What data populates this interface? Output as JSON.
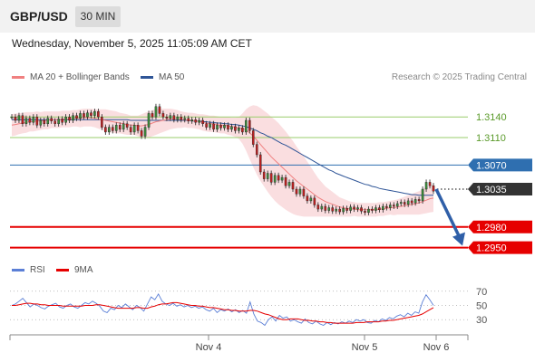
{
  "header": {
    "pair": "GBP/USD",
    "timeframe": "30 MIN"
  },
  "datetime": "Wednesday, November 5, 2025 11:05:09 AM CET",
  "legend_main": [
    {
      "label": "MA 20 + Bollinger Bands",
      "color": "#f08080"
    },
    {
      "label": "MA 50",
      "color": "#2f5597"
    }
  ],
  "legend_rsi": [
    {
      "label": "RSI",
      "color": "#5b7fd6"
    },
    {
      "label": "9MA",
      "color": "#e60000"
    }
  ],
  "credit": "Research © 2025 Trading Central",
  "colors": {
    "green": "#9acd6b",
    "blue": "#2f6fb0",
    "red": "#e60000",
    "dark": "#333333",
    "bands": "#fadadd",
    "candle_up": "#3c8c3c",
    "candle_down": "#c02020"
  },
  "chart_data": {
    "type": "candlestick",
    "x_ticks": [
      "Nov 4",
      "Nov 5",
      "Nov 6"
    ],
    "y_range": [
      1.2935,
      1.3185
    ],
    "levels": [
      {
        "value": 1.314,
        "label": "1.3140",
        "style": "green"
      },
      {
        "value": 1.311,
        "label": "1.3110",
        "style": "green"
      },
      {
        "value": 1.307,
        "label": "1.3070",
        "style": "blue"
      },
      {
        "value": 1.3035,
        "label": "1.3035",
        "style": "dark-current"
      },
      {
        "value": 1.298,
        "label": "1.2980",
        "style": "red"
      },
      {
        "value": 1.295,
        "label": "1.2950",
        "style": "red"
      }
    ],
    "close": [
      1.314,
      1.3135,
      1.3142,
      1.313,
      1.3138,
      1.3132,
      1.314,
      1.3128,
      1.3135,
      1.313,
      1.3138,
      1.3134,
      1.313,
      1.3137,
      1.3132,
      1.314,
      1.3135,
      1.3142,
      1.3138,
      1.3145,
      1.314,
      1.3146,
      1.3142,
      1.3148,
      1.314,
      1.3125,
      1.3118,
      1.3125,
      1.312,
      1.3128,
      1.3122,
      1.313,
      1.3125,
      1.3118,
      1.3128,
      1.312,
      1.3112,
      1.3125,
      1.3145,
      1.314,
      1.3155,
      1.3145,
      1.314,
      1.3138,
      1.3142,
      1.3136,
      1.314,
      1.3136,
      1.3138,
      1.3134,
      1.3136,
      1.3132,
      1.3135,
      1.313,
      1.3125,
      1.313,
      1.3122,
      1.3128,
      1.3124,
      1.3128,
      1.3122,
      1.3126,
      1.312,
      1.3124,
      1.3118,
      1.3135,
      1.312,
      1.31,
      1.3085,
      1.306,
      1.305,
      1.3058,
      1.3045,
      1.3055,
      1.3048,
      1.3052,
      1.304,
      1.3045,
      1.3035,
      1.3028,
      1.3035,
      1.3025,
      1.3018,
      1.3022,
      1.3012,
      1.3006,
      1.301,
      1.3004,
      1.3008,
      1.3003,
      1.3006,
      1.3002,
      1.3007,
      1.3004,
      1.3009,
      1.3006,
      1.3008,
      1.3003,
      1.3001,
      1.3006,
      1.3004,
      1.3008,
      1.3005,
      1.301,
      1.3008,
      1.3012,
      1.301,
      1.3014,
      1.3016,
      1.3013,
      1.3018,
      1.3015,
      1.302,
      1.3018,
      1.3035,
      1.3045,
      1.304,
      1.3032
    ],
    "ma20": [
      1.3128,
      1.3129,
      1.313,
      1.3131,
      1.3132,
      1.3133,
      1.3133,
      1.3134,
      1.3134,
      1.3135,
      1.3135,
      1.3136,
      1.3136,
      1.3136,
      1.3137,
      1.3137,
      1.3137,
      1.3138,
      1.3138,
      1.3138,
      1.3139,
      1.3139,
      1.3139,
      1.3138,
      1.3137,
      1.3136,
      1.3135,
      1.3134,
      1.3133,
      1.3132,
      1.3131,
      1.313,
      1.3129,
      1.3128,
      1.3128,
      1.3127,
      1.3127,
      1.3128,
      1.3129,
      1.3131,
      1.3133,
      1.3134,
      1.3135,
      1.3136,
      1.3137,
      1.3137,
      1.3137,
      1.3136,
      1.3136,
      1.3135,
      1.3135,
      1.3134,
      1.3133,
      1.3132,
      1.3131,
      1.313,
      1.313,
      1.3129,
      1.3128,
      1.3128,
      1.3127,
      1.3126,
      1.3125,
      1.3124,
      1.3123,
      1.3121,
      1.3117,
      1.3112,
      1.3106,
      1.31,
      1.3094,
      1.3088,
      1.3082,
      1.3077,
      1.3072,
      1.3067,
      1.3062,
      1.3057,
      1.3052,
      1.3047,
      1.3043,
      1.3039,
      1.3035,
      1.3031,
      1.3027,
      1.3023,
      1.302,
      1.3017,
      1.3015,
      1.3013,
      1.3011,
      1.3009,
      1.3008,
      1.3007,
      1.3006,
      1.3006,
      1.3005,
      1.3005,
      1.3005,
      1.3005,
      1.3005,
      1.3005,
      1.3006,
      1.3006,
      1.3007,
      1.3008,
      1.3008,
      1.3009,
      1.301,
      1.3011,
      1.3012,
      1.3013,
      1.3014,
      1.3015,
      1.3017,
      1.3019,
      1.3021,
      1.3022
    ],
    "ma50": [
      1.3136,
      1.3136,
      1.3136,
      1.3136,
      1.3136,
      1.3136,
      1.3136,
      1.3136,
      1.3136,
      1.3136,
      1.3136,
      1.3136,
      1.3136,
      1.3136,
      1.3136,
      1.3136,
      1.3136,
      1.3136,
      1.3136,
      1.3136,
      1.3136,
      1.3136,
      1.3136,
      1.3136,
      1.3136,
      1.3136,
      1.3136,
      1.3136,
      1.3136,
      1.3136,
      1.3136,
      1.3136,
      1.3136,
      1.3135,
      1.3135,
      1.3135,
      1.3135,
      1.3135,
      1.3135,
      1.3135,
      1.3135,
      1.3135,
      1.3135,
      1.3135,
      1.3135,
      1.3135,
      1.3135,
      1.3135,
      1.3135,
      1.3135,
      1.3134,
      1.3134,
      1.3134,
      1.3133,
      1.3133,
      1.3132,
      1.3132,
      1.3131,
      1.3131,
      1.313,
      1.313,
      1.3129,
      1.3129,
      1.3128,
      1.3127,
      1.3126,
      1.3124,
      1.3122,
      1.312,
      1.3117,
      1.3115,
      1.3112,
      1.311,
      1.3107,
      1.3104,
      1.3101,
      1.3099,
      1.3096,
      1.3093,
      1.309,
      1.3087,
      1.3084,
      1.3081,
      1.3078,
      1.3075,
      1.3072,
      1.3069,
      1.3066,
      1.3063,
      1.3061,
      1.3058,
      1.3056,
      1.3054,
      1.3052,
      1.305,
      1.3048,
      1.3046,
      1.3044,
      1.3042,
      1.3041,
      1.3039,
      1.3038,
      1.3036,
      1.3035,
      1.3034,
      1.3033,
      1.3032,
      1.3031,
      1.303,
      1.3029,
      1.3028,
      1.3027,
      1.3027,
      1.3026,
      1.3026,
      1.3026,
      1.3026,
      1.3026
    ],
    "band_halfwidth": [
      0.0016,
      0.0016,
      0.0015,
      0.0015,
      0.0015,
      0.0014,
      0.0014,
      0.0014,
      0.0013,
      0.0013,
      0.0013,
      0.0012,
      0.0012,
      0.0012,
      0.0012,
      0.0012,
      0.0012,
      0.0012,
      0.0012,
      0.0013,
      0.0013,
      0.0013,
      0.0013,
      0.0013,
      0.0014,
      0.0015,
      0.0016,
      0.0016,
      0.0016,
      0.0016,
      0.0015,
      0.0015,
      0.0015,
      0.0014,
      0.0014,
      0.0015,
      0.0017,
      0.0018,
      0.0019,
      0.0019,
      0.0019,
      0.0018,
      0.0017,
      0.0016,
      0.0015,
      0.0014,
      0.0013,
      0.0012,
      0.0011,
      0.0011,
      0.0011,
      0.0011,
      0.0011,
      0.0012,
      0.0012,
      0.0012,
      0.0012,
      0.0012,
      0.0012,
      0.0012,
      0.0013,
      0.0013,
      0.0014,
      0.0016,
      0.0022,
      0.003,
      0.0038,
      0.0045,
      0.005,
      0.0053,
      0.0055,
      0.0057,
      0.0058,
      0.0059,
      0.0059,
      0.0058,
      0.0057,
      0.0055,
      0.0053,
      0.005,
      0.0047,
      0.0044,
      0.004,
      0.0036,
      0.0032,
      0.0028,
      0.0025,
      0.0022,
      0.002,
      0.0018,
      0.0016,
      0.0014,
      0.0013,
      0.0012,
      0.0011,
      0.001,
      0.001,
      0.001,
      0.001,
      0.001,
      0.001,
      0.001,
      0.001,
      0.001,
      0.001,
      0.001,
      0.0011,
      0.0011,
      0.0012,
      0.0013,
      0.0014,
      0.0015,
      0.0016,
      0.0017,
      0.0018,
      0.0019,
      0.002,
      0.002
    ],
    "forecast": {
      "from": 1.3035,
      "to": 1.295
    },
    "rsi": {
      "y_ticks": [
        70,
        50,
        30
      ],
      "y_range": [
        15,
        85
      ],
      "values": [
        50,
        52,
        56,
        60,
        54,
        48,
        52,
        50,
        47,
        45,
        49,
        51,
        53,
        48,
        46,
        50,
        52,
        48,
        46,
        50,
        54,
        52,
        56,
        53,
        49,
        42,
        40,
        46,
        44,
        50,
        47,
        52,
        48,
        44,
        50,
        47,
        42,
        52,
        62,
        58,
        66,
        56,
        52,
        50,
        53,
        49,
        51,
        48,
        50,
        47,
        49,
        46,
        48,
        44,
        42,
        46,
        40,
        44,
        42,
        45,
        41,
        44,
        40,
        43,
        39,
        55,
        38,
        28,
        26,
        22,
        30,
        34,
        28,
        36,
        32,
        34,
        28,
        30,
        27,
        25,
        31,
        26,
        24,
        28,
        24,
        22,
        26,
        23,
        26,
        24,
        27,
        25,
        28,
        26,
        30,
        28,
        30,
        26,
        25,
        29,
        27,
        31,
        29,
        33,
        31,
        35,
        37,
        34,
        39,
        36,
        41,
        39,
        55,
        65,
        58,
        50
      ],
      "ma9": [
        50,
        50,
        51,
        52,
        53,
        53,
        52,
        52,
        51,
        51,
        50,
        50,
        50,
        50,
        49,
        49,
        49,
        49,
        49,
        49,
        50,
        50,
        50,
        51,
        51,
        50,
        49,
        48,
        47,
        46,
        46,
        46,
        46,
        46,
        47,
        47,
        46,
        46,
        48,
        49,
        51,
        52,
        52,
        53,
        54,
        54,
        53,
        52,
        51,
        50,
        50,
        49,
        49,
        48,
        47,
        47,
        46,
        45,
        44,
        44,
        43,
        43,
        42,
        42,
        42,
        43,
        43,
        42,
        40,
        38,
        37,
        35,
        33,
        31,
        30,
        30,
        31,
        31,
        31,
        30,
        29,
        29,
        28,
        28,
        27,
        27,
        26,
        26,
        25,
        25,
        25,
        25,
        25,
        25,
        26,
        26,
        26,
        27,
        27,
        27,
        27,
        28,
        28,
        29,
        29,
        30,
        31,
        32,
        33,
        34,
        35,
        36,
        38,
        41,
        44,
        47
      ]
    }
  }
}
